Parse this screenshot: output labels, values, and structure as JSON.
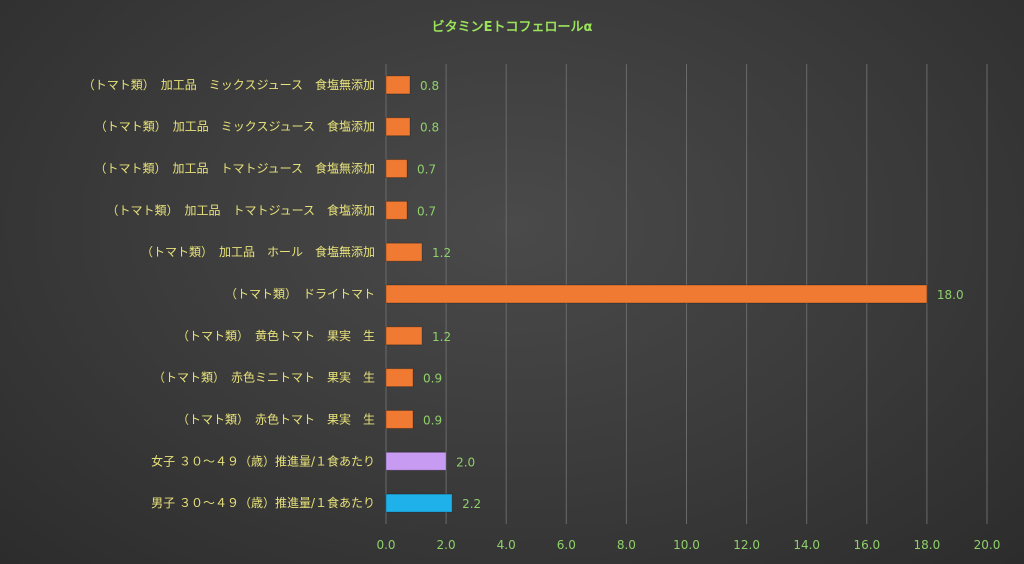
{
  "chart_data": {
    "type": "bar",
    "orientation": "horizontal",
    "title": "ビタミンEトコフェロールα",
    "categories": [
      "（トマト類）　加工品　ミックスジュース　食塩無添加",
      "（トマト類）　加工品　ミックスジュース　食塩添加",
      "（トマト類）　加工品　トマトジュース　食塩無添加",
      "（トマト類）　加工品　トマトジュース　食塩添加",
      "（トマト類）　加工品　ホール　食塩無添加",
      "（トマト類）　ドライトマト",
      "（トマト類）　黄色トマト　果実　生",
      "（トマト類）　赤色ミニトマト　果実　生",
      "（トマト類）　赤色トマト　果実　生",
      "女子 ３０～４９（歳）推進量/１食あたり",
      "男子 ３０～４９（歳）推進量/１食あたり"
    ],
    "values": [
      0.8,
      0.8,
      0.7,
      0.7,
      1.2,
      18.0,
      1.2,
      0.9,
      0.9,
      2.0,
      2.2
    ],
    "value_labels": [
      "0.8",
      "0.8",
      "0.7",
      "0.7",
      "1.2",
      "18.0",
      "1.2",
      "0.9",
      "0.9",
      "2.0",
      "2.2"
    ],
    "colors": [
      "#f07a32",
      "#f07a32",
      "#f07a32",
      "#f07a32",
      "#f07a32",
      "#f07a32",
      "#f07a32",
      "#f07a32",
      "#f07a32",
      "#c79bf2",
      "#1fb1ea"
    ],
    "xlim": [
      0,
      20
    ],
    "xticks": [
      "0.0",
      "2.0",
      "4.0",
      "6.0",
      "8.0",
      "10.0",
      "12.0",
      "14.0",
      "16.0",
      "18.0",
      "20.0"
    ],
    "grid": true,
    "legend": "none"
  }
}
